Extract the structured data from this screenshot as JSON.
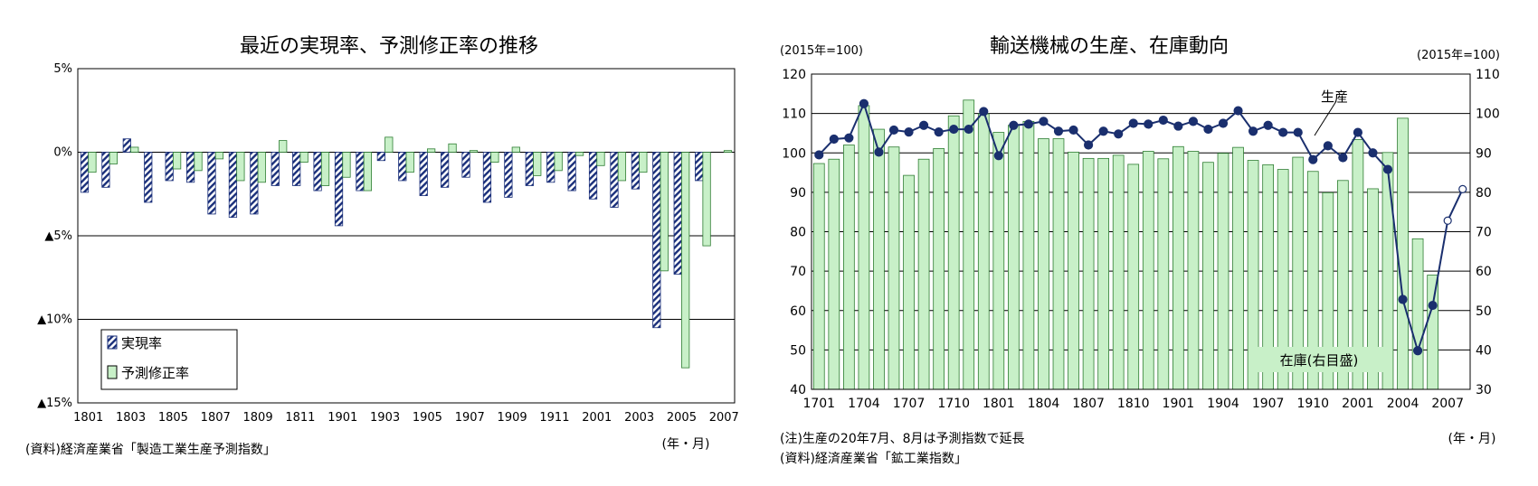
{
  "charts": [
    {
      "notes": {
        "source": "(資料)経済産業省「製造工業生産予測指数」",
        "xunit": "(年・月)"
      }
    },
    {
      "notes": {
        "yunit_left": "(2015年=100)",
        "yunit_right": "(2015年=100)",
        "note": "(注)生産の20年7月、8月は予測指数で延長",
        "source": "(資料)経済産業省「鉱工業指数」",
        "xunit": "(年・月)"
      },
      "callouts": {
        "production": "生産",
        "inventory": "在庫(右目盛)"
      }
    }
  ],
  "chart_data": [
    {
      "type": "bar",
      "title": "最近の実現率、予測修正率の推移",
      "ylim": [
        -15,
        5
      ],
      "yticks": [
        5,
        0,
        -5,
        -10,
        -15
      ],
      "ytick_labels": [
        "5%",
        "0%",
        "▲5%",
        "▲10%",
        "▲15%"
      ],
      "xtick_labels": [
        "1801",
        "1803",
        "1805",
        "1807",
        "1809",
        "1811",
        "1901",
        "1903",
        "1905",
        "1907",
        "1909",
        "1911",
        "2001",
        "2003",
        "2005",
        "2007"
      ],
      "legend_placement": "bottom-left",
      "grid": "horizontal",
      "series": [
        {
          "name": "実現率",
          "color": "#1a2f7a",
          "values": [
            -2.4,
            -2.1,
            0.8,
            -3.0,
            -1.7,
            -1.8,
            -3.7,
            -3.9,
            -3.7,
            -2.0,
            -2.0,
            -2.3,
            -4.4,
            -2.3,
            -0.5,
            -1.7,
            -2.6,
            -2.1,
            -1.5,
            -3.0,
            -2.7,
            -2.0,
            -1.8,
            -2.3,
            -2.8,
            -3.3,
            -2.2,
            -10.5,
            -7.3,
            -1.7,
            0
          ]
        },
        {
          "name": "予測修正率",
          "color": "#c8f0c8",
          "values": [
            -1.2,
            -0.7,
            0.3,
            0,
            -1.0,
            -1.1,
            -0.4,
            -1.7,
            -1.8,
            0.7,
            -0.6,
            -2.0,
            -1.5,
            -2.3,
            0.9,
            -1.2,
            0.2,
            0.5,
            0.1,
            -0.6,
            0.3,
            -1.4,
            -1.1,
            -0.2,
            -0.8,
            -1.7,
            -1.2,
            -7.1,
            -12.9,
            -5.6,
            0.1
          ]
        }
      ]
    },
    {
      "type": "bar",
      "title": "輸送機械の生産、在庫動向",
      "ylim": [
        40,
        120
      ],
      "y2lim": [
        30,
        110
      ],
      "yticks": [
        40,
        50,
        60,
        70,
        80,
        90,
        100,
        110,
        120
      ],
      "y2ticks": [
        30,
        40,
        50,
        60,
        70,
        80,
        90,
        100,
        110
      ],
      "xtick_labels": [
        "1701",
        "1704",
        "1707",
        "1710",
        "1801",
        "1804",
        "1807",
        "1810",
        "1901",
        "1904",
        "1907",
        "1910",
        "2001",
        "2004",
        "2007"
      ],
      "grid": "horizontal",
      "series": [
        {
          "name": "在庫(右目盛)",
          "axis": "right",
          "type": "bar",
          "color": "#c8f0c8",
          "values": [
            87.3,
            88.4,
            92,
            102,
            96,
            91.5,
            84.3,
            88.4,
            91.1,
            99.4,
            103.4,
            99.9,
            95.2,
            97,
            98,
            93.6,
            93.6,
            90.2,
            88.6,
            88.6,
            89.4,
            87.1,
            90.4,
            88.5,
            91.6,
            90.4,
            87.6,
            89.9,
            91.4,
            88.1,
            87,
            85.8,
            88.9,
            85.3,
            79.9,
            83,
            93.4,
            80.9,
            90.1,
            98.8,
            68.2,
            59
          ]
        },
        {
          "name": "生産",
          "axis": "left",
          "type": "line",
          "color": "#1a2f6e",
          "values": [
            99.5,
            103.5,
            103.8,
            112.5,
            100.2,
            105.8,
            105.3,
            107,
            105.3,
            106,
            106,
            110.5,
            99.3,
            107,
            107.3,
            108,
            105.5,
            105.8,
            102,
            105.5,
            104.8,
            107.5,
            107.3,
            108.3,
            106.8,
            108,
            106,
            107.5,
            110.7,
            105.5,
            107,
            105.2,
            105.2,
            98.3,
            101.8,
            98.8,
            105.2,
            100,
            95.8,
            62.8,
            49.8,
            61.3,
            82.8,
            90.8
          ],
          "forecast_from_index": 42
        }
      ]
    }
  ]
}
